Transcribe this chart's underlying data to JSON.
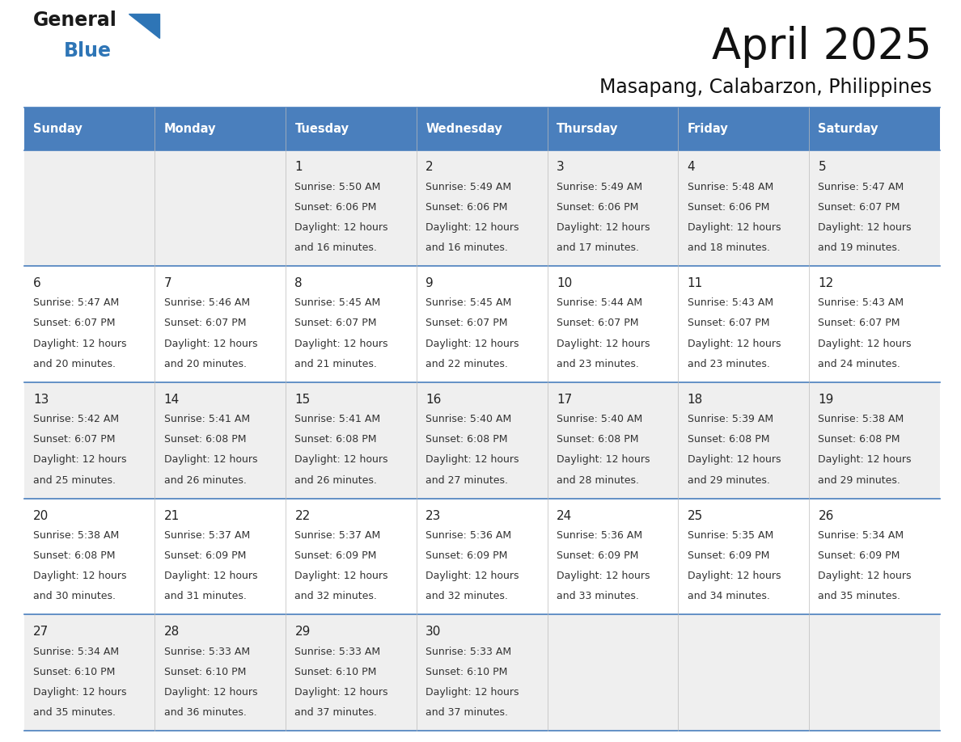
{
  "title": "April 2025",
  "subtitle": "Masapang, Calabarzon, Philippines",
  "header_color": "#4A7FBD",
  "header_text_color": "#FFFFFF",
  "days_of_week": [
    "Sunday",
    "Monday",
    "Tuesday",
    "Wednesday",
    "Thursday",
    "Friday",
    "Saturday"
  ],
  "grid_line_color": "#4A7FBD",
  "cell_bg_row0": "#EFEFEF",
  "cell_bg_row1": "#FFFFFF",
  "cell_bg_row2": "#EFEFEF",
  "cell_bg_row3": "#FFFFFF",
  "cell_bg_row4": "#EFEFEF",
  "day_number_color": "#222222",
  "text_color": "#333333",
  "calendar_data": [
    [
      {
        "day": "",
        "sunrise": "",
        "sunset": "",
        "daylight_line1": "",
        "daylight_line2": ""
      },
      {
        "day": "",
        "sunrise": "",
        "sunset": "",
        "daylight_line1": "",
        "daylight_line2": ""
      },
      {
        "day": "1",
        "sunrise": "5:50 AM",
        "sunset": "6:06 PM",
        "daylight_line1": "Daylight: 12 hours",
        "daylight_line2": "and 16 minutes."
      },
      {
        "day": "2",
        "sunrise": "5:49 AM",
        "sunset": "6:06 PM",
        "daylight_line1": "Daylight: 12 hours",
        "daylight_line2": "and 16 minutes."
      },
      {
        "day": "3",
        "sunrise": "5:49 AM",
        "sunset": "6:06 PM",
        "daylight_line1": "Daylight: 12 hours",
        "daylight_line2": "and 17 minutes."
      },
      {
        "day": "4",
        "sunrise": "5:48 AM",
        "sunset": "6:06 PM",
        "daylight_line1": "Daylight: 12 hours",
        "daylight_line2": "and 18 minutes."
      },
      {
        "day": "5",
        "sunrise": "5:47 AM",
        "sunset": "6:07 PM",
        "daylight_line1": "Daylight: 12 hours",
        "daylight_line2": "and 19 minutes."
      }
    ],
    [
      {
        "day": "6",
        "sunrise": "5:47 AM",
        "sunset": "6:07 PM",
        "daylight_line1": "Daylight: 12 hours",
        "daylight_line2": "and 20 minutes."
      },
      {
        "day": "7",
        "sunrise": "5:46 AM",
        "sunset": "6:07 PM",
        "daylight_line1": "Daylight: 12 hours",
        "daylight_line2": "and 20 minutes."
      },
      {
        "day": "8",
        "sunrise": "5:45 AM",
        "sunset": "6:07 PM",
        "daylight_line1": "Daylight: 12 hours",
        "daylight_line2": "and 21 minutes."
      },
      {
        "day": "9",
        "sunrise": "5:45 AM",
        "sunset": "6:07 PM",
        "daylight_line1": "Daylight: 12 hours",
        "daylight_line2": "and 22 minutes."
      },
      {
        "day": "10",
        "sunrise": "5:44 AM",
        "sunset": "6:07 PM",
        "daylight_line1": "Daylight: 12 hours",
        "daylight_line2": "and 23 minutes."
      },
      {
        "day": "11",
        "sunrise": "5:43 AM",
        "sunset": "6:07 PM",
        "daylight_line1": "Daylight: 12 hours",
        "daylight_line2": "and 23 minutes."
      },
      {
        "day": "12",
        "sunrise": "5:43 AM",
        "sunset": "6:07 PM",
        "daylight_line1": "Daylight: 12 hours",
        "daylight_line2": "and 24 minutes."
      }
    ],
    [
      {
        "day": "13",
        "sunrise": "5:42 AM",
        "sunset": "6:07 PM",
        "daylight_line1": "Daylight: 12 hours",
        "daylight_line2": "and 25 minutes."
      },
      {
        "day": "14",
        "sunrise": "5:41 AM",
        "sunset": "6:08 PM",
        "daylight_line1": "Daylight: 12 hours",
        "daylight_line2": "and 26 minutes."
      },
      {
        "day": "15",
        "sunrise": "5:41 AM",
        "sunset": "6:08 PM",
        "daylight_line1": "Daylight: 12 hours",
        "daylight_line2": "and 26 minutes."
      },
      {
        "day": "16",
        "sunrise": "5:40 AM",
        "sunset": "6:08 PM",
        "daylight_line1": "Daylight: 12 hours",
        "daylight_line2": "and 27 minutes."
      },
      {
        "day": "17",
        "sunrise": "5:40 AM",
        "sunset": "6:08 PM",
        "daylight_line1": "Daylight: 12 hours",
        "daylight_line2": "and 28 minutes."
      },
      {
        "day": "18",
        "sunrise": "5:39 AM",
        "sunset": "6:08 PM",
        "daylight_line1": "Daylight: 12 hours",
        "daylight_line2": "and 29 minutes."
      },
      {
        "day": "19",
        "sunrise": "5:38 AM",
        "sunset": "6:08 PM",
        "daylight_line1": "Daylight: 12 hours",
        "daylight_line2": "and 29 minutes."
      }
    ],
    [
      {
        "day": "20",
        "sunrise": "5:38 AM",
        "sunset": "6:08 PM",
        "daylight_line1": "Daylight: 12 hours",
        "daylight_line2": "and 30 minutes."
      },
      {
        "day": "21",
        "sunrise": "5:37 AM",
        "sunset": "6:09 PM",
        "daylight_line1": "Daylight: 12 hours",
        "daylight_line2": "and 31 minutes."
      },
      {
        "day": "22",
        "sunrise": "5:37 AM",
        "sunset": "6:09 PM",
        "daylight_line1": "Daylight: 12 hours",
        "daylight_line2": "and 32 minutes."
      },
      {
        "day": "23",
        "sunrise": "5:36 AM",
        "sunset": "6:09 PM",
        "daylight_line1": "Daylight: 12 hours",
        "daylight_line2": "and 32 minutes."
      },
      {
        "day": "24",
        "sunrise": "5:36 AM",
        "sunset": "6:09 PM",
        "daylight_line1": "Daylight: 12 hours",
        "daylight_line2": "and 33 minutes."
      },
      {
        "day": "25",
        "sunrise": "5:35 AM",
        "sunset": "6:09 PM",
        "daylight_line1": "Daylight: 12 hours",
        "daylight_line2": "and 34 minutes."
      },
      {
        "day": "26",
        "sunrise": "5:34 AM",
        "sunset": "6:09 PM",
        "daylight_line1": "Daylight: 12 hours",
        "daylight_line2": "and 35 minutes."
      }
    ],
    [
      {
        "day": "27",
        "sunrise": "5:34 AM",
        "sunset": "6:10 PM",
        "daylight_line1": "Daylight: 12 hours",
        "daylight_line2": "and 35 minutes."
      },
      {
        "day": "28",
        "sunrise": "5:33 AM",
        "sunset": "6:10 PM",
        "daylight_line1": "Daylight: 12 hours",
        "daylight_line2": "and 36 minutes."
      },
      {
        "day": "29",
        "sunrise": "5:33 AM",
        "sunset": "6:10 PM",
        "daylight_line1": "Daylight: 12 hours",
        "daylight_line2": "and 37 minutes."
      },
      {
        "day": "30",
        "sunrise": "5:33 AM",
        "sunset": "6:10 PM",
        "daylight_line1": "Daylight: 12 hours",
        "daylight_line2": "and 37 minutes."
      },
      {
        "day": "",
        "sunrise": "",
        "sunset": "",
        "daylight_line1": "",
        "daylight_line2": ""
      },
      {
        "day": "",
        "sunrise": "",
        "sunset": "",
        "daylight_line1": "",
        "daylight_line2": ""
      },
      {
        "day": "",
        "sunrise": "",
        "sunset": "",
        "daylight_line1": "",
        "daylight_line2": ""
      }
    ]
  ],
  "logo_text_general": "General",
  "logo_text_blue": "Blue",
  "logo_color_general": "#1a1a1a",
  "logo_color_blue": "#2E75B6",
  "logo_triangle_color": "#2E75B6"
}
